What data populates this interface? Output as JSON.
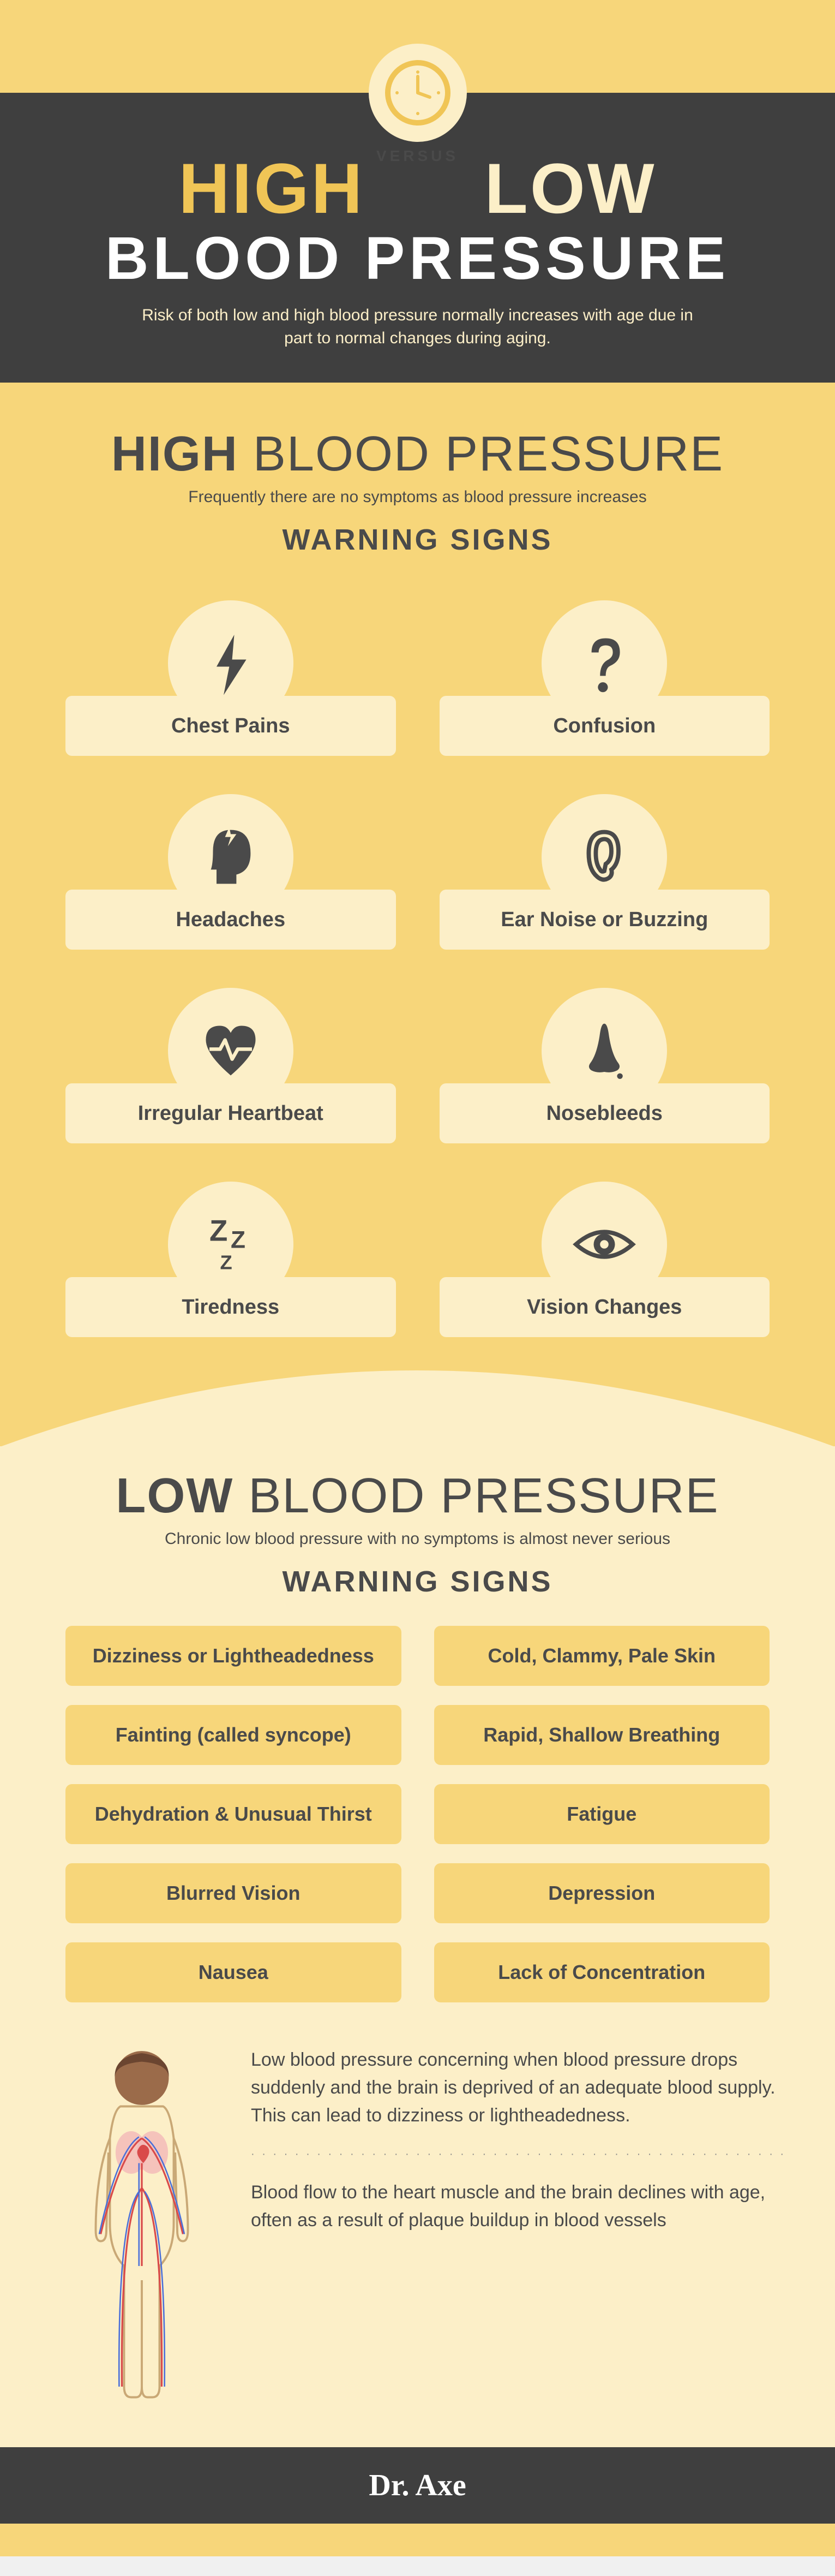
{
  "colors": {
    "darkBg": "#3f3f3f",
    "mainYellow": "#f7d67a",
    "lightCream": "#fcefc8",
    "accentGold": "#f0c556",
    "textDark": "#4a4a4a",
    "white": "#ffffff"
  },
  "header": {
    "titleHigh": "HIGH",
    "versus": "VERSUS",
    "titleLow": "LOW",
    "titleBP": "BLOOD PRESSURE",
    "intro": "Risk of both low and high blood pressure normally increases with age due in part to normal changes during aging."
  },
  "high": {
    "titleBold": "HIGH",
    "titleRest": " BLOOD PRESSURE",
    "subtitle": "Frequently there are no symptoms as blood pressure increases",
    "warning": "WARNING SIGNS",
    "signs": [
      {
        "label": "Chest Pains",
        "icon": "bolt"
      },
      {
        "label": "Confusion",
        "icon": "question"
      },
      {
        "label": "Headaches",
        "icon": "head"
      },
      {
        "label": "Ear Noise or Buzzing",
        "icon": "ear"
      },
      {
        "label": "Irregular Heartbeat",
        "icon": "heart"
      },
      {
        "label": "Nosebleeds",
        "icon": "nose"
      },
      {
        "label": "Tiredness",
        "icon": "zzz"
      },
      {
        "label": "Vision Changes",
        "icon": "eye"
      }
    ]
  },
  "low": {
    "titleBold": "LOW",
    "titleRest": " BLOOD PRESSURE",
    "subtitle": "Chronic low blood pressure with no symptoms is almost never serious",
    "warning": "WARNING SIGNS",
    "signs": [
      "Dizziness or Lightheadedness",
      "Cold, Clammy, Pale Skin",
      "Fainting (called syncope)",
      "Rapid, Shallow Breathing",
      "Dehydration & Unusual Thirst",
      "Fatigue",
      "Blurred Vision",
      "Depression",
      "Nausea",
      "Lack of Concentration"
    ],
    "para1": "Low blood pressure concerning  when blood pressure drops suddenly and the brain is deprived of an adequate blood supply. This can lead to dizziness or lightheadedness.",
    "para2": "Blood flow to the heart muscle and the brain declines with age, often as a result of plaque buildup in blood vessels"
  },
  "footer": {
    "brand": "Dr. Axe"
  }
}
